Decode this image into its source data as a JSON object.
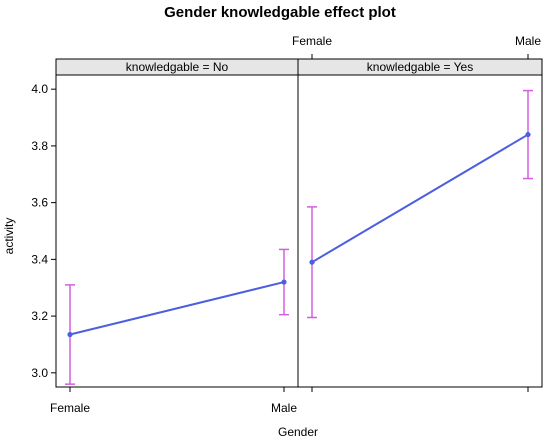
{
  "chart_data": {
    "type": "line",
    "title": "Gender knowledgable effect plot",
    "xlabel": "Gender",
    "ylabel": "activity",
    "categories": [
      "Female",
      "Male"
    ],
    "ylim": [
      2.95,
      4.05
    ],
    "yticks": [
      "3.0",
      "3.2",
      "3.4",
      "3.6",
      "3.8",
      "4.0"
    ],
    "panels": [
      {
        "strip": "knowledgable = No",
        "values": [
          3.135,
          3.32
        ],
        "lower": [
          2.96,
          3.205
        ],
        "upper": [
          3.31,
          3.435
        ]
      },
      {
        "strip": "knowledgable = Yes",
        "values": [
          3.39,
          3.84
        ],
        "lower": [
          3.195,
          3.685
        ],
        "upper": [
          3.585,
          3.995
        ]
      }
    ],
    "colors": {
      "line": "#4b5fe0",
      "errorbar": "#d25fe0",
      "strip": "#e6e6e6"
    }
  }
}
